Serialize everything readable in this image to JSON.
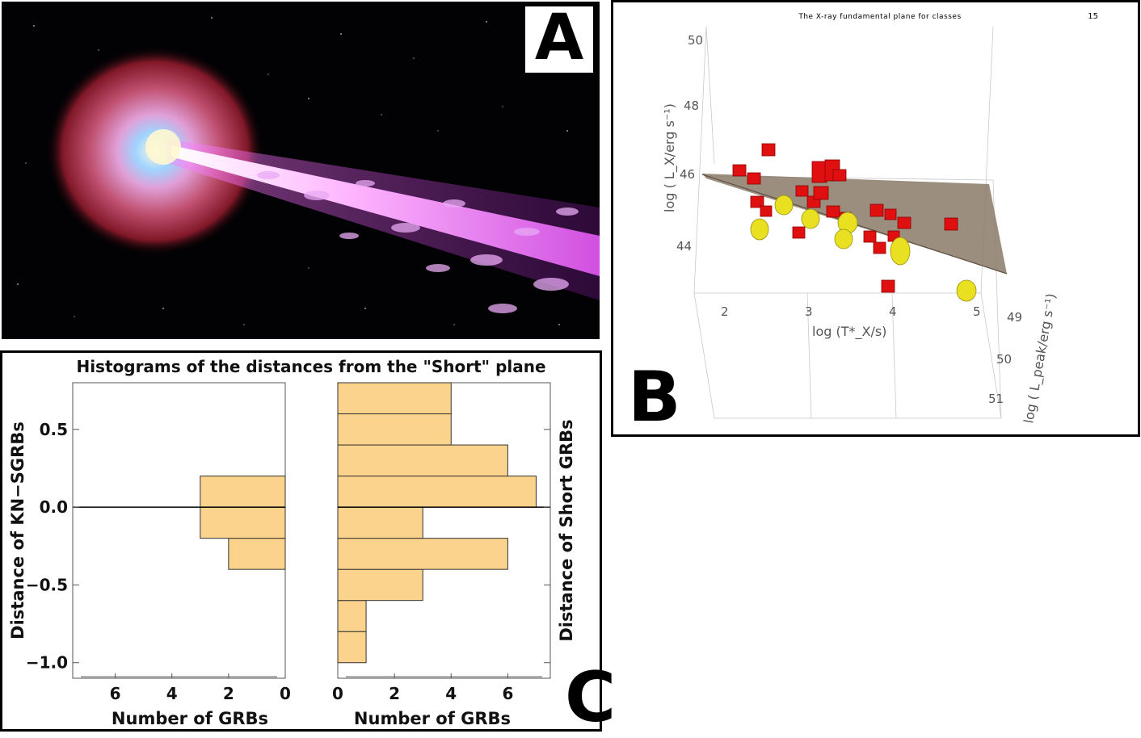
{
  "panel_labels": {
    "a": "A",
    "b": "B",
    "c": "C"
  },
  "panel_b": {
    "running_header": "The X-ray fundamental plane for classes",
    "page_number": "15",
    "z_ticks": [
      "50",
      "48",
      "46",
      "44"
    ],
    "x_ticks": [
      "2",
      "3",
      "4",
      "5"
    ],
    "y_ticks": [
      "49",
      "50",
      "51"
    ],
    "z_label": "log ( L_X/erg s⁻¹)",
    "x_label": "log (T*_X/s)",
    "y_label": "log ( L_peak/erg s⁻¹)",
    "colors": {
      "short_grbs": "#e01010",
      "kn_sgrbs": "#e8e020",
      "plane": "#8a7a68"
    }
  },
  "chart_data": {
    "type": "bar",
    "orientation": "horizontal",
    "title": "Histograms of the distances from the \"Short\" plane",
    "bin_edges": [
      -1.0,
      -0.8,
      -0.6,
      -0.4,
      -0.2,
      0.0,
      0.2,
      0.4,
      0.6,
      0.8
    ],
    "ylim": [
      -1.1,
      0.8
    ],
    "y_ticks": [
      "0.5",
      "0.0",
      "−0.5",
      "−1.0"
    ],
    "bar_color": "#fbd38c",
    "panels": [
      {
        "name": "KN-SGRBs",
        "ylabel": "Distance of KN−SGRBs",
        "xlabel": "Number of GRBs",
        "x_ticks": [
          "6",
          "4",
          "2",
          "0"
        ],
        "xlim": [
          0,
          7.5
        ],
        "x_reversed": true,
        "counts": [
          0,
          0,
          0,
          2,
          3,
          3,
          0,
          0,
          0
        ]
      },
      {
        "name": "Short GRBs",
        "ylabel": "Distance of Short GRBs",
        "xlabel": "Number of GRBs",
        "x_ticks": [
          "0",
          "2",
          "4",
          "6"
        ],
        "xlim": [
          0,
          7.5
        ],
        "x_reversed": false,
        "counts": [
          1,
          1,
          3,
          6,
          3,
          7,
          6,
          4,
          4
        ]
      }
    ]
  }
}
